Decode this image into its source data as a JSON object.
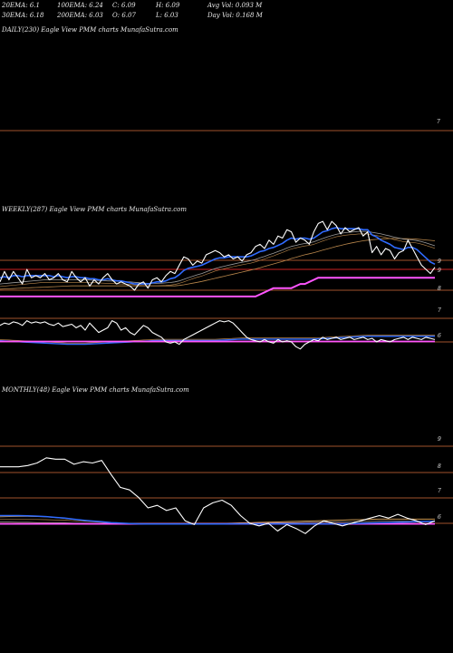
{
  "header": {
    "row1": [
      "20EMA: 6.1",
      "100EMA: 6.24",
      "C: 6.09",
      "H: 6.09",
      "Avg Vol: 0.093 M"
    ],
    "row2": [
      "30EMA: 6.18",
      "200EMA: 6.03",
      "O: 6.07",
      "L: 6.03",
      "Day Vol: 0.168 M"
    ]
  },
  "chart_data": [
    {
      "type": "line",
      "title": "DAILY(230) Eagle  View  PMM charts MunafaSutra.com",
      "y_ticks": [
        "7"
      ],
      "series": []
    },
    {
      "type": "line",
      "title": "WEEKLY(287) Eagle  View  PMM charts MunafaSutra.com",
      "y_ticks_upper": [
        "9",
        "9",
        "8"
      ],
      "y_ticks_lower": [
        "7",
        "6"
      ],
      "price": [
        8.4,
        8.9,
        8.5,
        8.9,
        8.6,
        8.3,
        9.0,
        8.6,
        8.7,
        8.6,
        8.8,
        8.5,
        8.6,
        8.8,
        8.5,
        8.4,
        8.9,
        8.6,
        8.4,
        8.6,
        8.2,
        8.5,
        8.3,
        8.6,
        8.8,
        8.5,
        8.3,
        8.4,
        8.3,
        8.2,
        8.0,
        8.3,
        8.4,
        8.1,
        8.5,
        8.6,
        8.4,
        8.7,
        8.9,
        8.8,
        9.2,
        9.6,
        9.5,
        9.2,
        9.4,
        9.3,
        9.7,
        9.8,
        9.9,
        9.8,
        9.6,
        9.7,
        9.5,
        9.6,
        9.4,
        9.7,
        9.8,
        10.1,
        10.2,
        10.0,
        10.4,
        10.2,
        10.6,
        10.5,
        10.9,
        10.8,
        10.3,
        10.5,
        10.4,
        10.2,
        10.8,
        11.2,
        11.3,
        10.9,
        11.3,
        11.1,
        10.7,
        11.0,
        10.8,
        10.9,
        11.0,
        10.6,
        10.8,
        9.8,
        10.1,
        9.7,
        10.0,
        9.9,
        9.5,
        9.8,
        9.9,
        10.4,
        10.0,
        9.6,
        9.2,
        9.0,
        8.8,
        9.1
      ],
      "ema_fast": [
        8.6,
        8.65,
        8.6,
        8.7,
        8.7,
        8.65,
        8.7,
        8.7,
        8.7,
        8.7,
        8.7,
        8.7,
        8.65,
        8.7,
        8.65,
        8.6,
        8.65,
        8.65,
        8.6,
        8.6,
        8.55,
        8.55,
        8.5,
        8.5,
        8.55,
        8.5,
        8.45,
        8.45,
        8.4,
        8.35,
        8.3,
        8.3,
        8.3,
        8.3,
        8.35,
        8.4,
        8.4,
        8.45,
        8.55,
        8.6,
        8.75,
        8.95,
        9.05,
        9.1,
        9.15,
        9.2,
        9.3,
        9.4,
        9.5,
        9.55,
        9.55,
        9.6,
        9.6,
        9.6,
        9.6,
        9.6,
        9.65,
        9.75,
        9.85,
        9.9,
        10.0,
        10.05,
        10.15,
        10.25,
        10.4,
        10.5,
        10.45,
        10.5,
        10.5,
        10.45,
        10.5,
        10.65,
        10.8,
        10.85,
        10.95,
        11.0,
        10.95,
        10.95,
        10.95,
        10.95,
        10.95,
        10.9,
        10.9,
        10.65,
        10.55,
        10.4,
        10.3,
        10.2,
        10.05,
        10.0,
        9.95,
        10.05,
        10.05,
        9.95,
        9.75,
        9.55,
        9.35,
        9.25
      ],
      "ema_slow": [
        8.3,
        8.32,
        8.34,
        8.36,
        8.38,
        8.4,
        8.42,
        8.44,
        8.46,
        8.48,
        8.5,
        8.5,
        8.5,
        8.5,
        8.5,
        8.5,
        8.5,
        8.5,
        8.5,
        8.5,
        8.49,
        8.48,
        8.47,
        8.46,
        8.45,
        8.44,
        8.43,
        8.42,
        8.41,
        8.4,
        8.38,
        8.36,
        8.34,
        8.33,
        8.33,
        8.33,
        8.34,
        8.35,
        8.37,
        8.4,
        8.45,
        8.52,
        8.6,
        8.67,
        8.74,
        8.8,
        8.88,
        8.96,
        9.04,
        9.1,
        9.15,
        9.2,
        9.25,
        9.3,
        9.34,
        9.38,
        9.42,
        9.48,
        9.55,
        9.62,
        9.7,
        9.77,
        9.85,
        9.93,
        10.02,
        10.1,
        10.15,
        10.2,
        10.24,
        10.27,
        10.32,
        10.4,
        10.48,
        10.55,
        10.62,
        10.68,
        10.72,
        10.76,
        10.78,
        10.8,
        10.82,
        10.82,
        10.82,
        10.78,
        10.74,
        10.7,
        10.65,
        10.6,
        10.54,
        10.5,
        10.45,
        10.43,
        10.41,
        10.38,
        10.33,
        10.27,
        10.2,
        10.13
      ],
      "ema_slowest": [
        8.05,
        8.06,
        8.07,
        8.08,
        8.09,
        8.1,
        8.11,
        8.12,
        8.13,
        8.14,
        8.15,
        8.16,
        8.17,
        8.18,
        8.19,
        8.2,
        8.21,
        8.21,
        8.21,
        8.21,
        8.21,
        8.21,
        8.21,
        8.21,
        8.21,
        8.21,
        8.21,
        8.21,
        8.21,
        8.21,
        8.21,
        8.21,
        8.21,
        8.21,
        8.21,
        8.21,
        8.21,
        8.21,
        8.21,
        8.21,
        8.23,
        8.26,
        8.3,
        8.34,
        8.38,
        8.42,
        8.47,
        8.52,
        8.57,
        8.62,
        8.67,
        8.72,
        8.77,
        8.82,
        8.87,
        8.92,
        8.97,
        9.02,
        9.08,
        9.14,
        9.2,
        9.26,
        9.32,
        9.38,
        9.45,
        9.52,
        9.58,
        9.64,
        9.7,
        9.75,
        9.8,
        9.86,
        9.92,
        9.98,
        10.04,
        10.1,
        10.15,
        10.2,
        10.25,
        10.29,
        10.33,
        10.37,
        10.4,
        10.42,
        10.44,
        10.46,
        10.47,
        10.48,
        10.48,
        10.48,
        10.47,
        10.47,
        10.46,
        10.45,
        10.43,
        10.41,
        10.39,
        10.37
      ],
      "min_line": [
        7.7,
        7.7,
        7.7,
        7.7,
        7.7,
        7.7,
        7.7,
        7.7,
        7.7,
        7.7,
        7.7,
        7.7,
        7.7,
        7.7,
        7.7,
        7.7,
        7.7,
        7.7,
        7.7,
        7.7,
        7.7,
        7.7,
        7.7,
        7.7,
        7.7,
        7.7,
        7.7,
        7.7,
        7.7,
        7.7,
        7.7,
        7.7,
        7.7,
        7.7,
        7.7,
        7.7,
        7.7,
        7.7,
        7.7,
        7.7,
        7.7,
        7.7,
        7.7,
        7.7,
        7.7,
        7.7,
        7.7,
        7.7,
        7.7,
        7.7,
        7.7,
        7.7,
        7.7,
        7.7,
        7.7,
        7.7,
        7.7,
        7.7,
        7.8,
        7.9,
        8.0,
        8.1,
        8.1,
        8.1,
        8.1,
        8.1,
        8.2,
        8.3,
        8.3,
        8.4,
        8.5,
        8.6,
        8.6,
        8.6,
        8.6,
        8.6,
        8.6,
        8.6,
        8.6,
        8.6,
        8.6,
        8.6,
        8.6,
        8.6,
        8.6,
        8.6,
        8.6,
        8.6,
        8.6,
        8.6,
        8.6,
        8.6,
        8.6,
        8.6,
        8.6,
        8.6,
        8.6,
        8.6
      ],
      "lower_price": [
        6.7,
        6.8,
        6.75,
        6.85,
        6.8,
        6.7,
        6.9,
        6.8,
        6.85,
        6.8,
        6.85,
        6.75,
        6.7,
        6.8,
        6.65,
        6.7,
        6.75,
        6.6,
        6.7,
        6.5,
        6.8,
        6.6,
        6.4,
        6.5,
        6.6,
        6.9,
        6.8,
        6.5,
        6.6,
        6.4,
        6.3,
        6.5,
        6.7,
        6.6,
        6.4,
        6.3,
        6.2,
        6.0,
        5.95,
        6.0,
        5.9,
        6.1,
        6.2,
        6.3,
        6.4,
        6.5,
        6.6,
        6.7,
        6.8,
        6.9,
        6.85,
        6.9,
        6.8,
        6.6,
        6.4,
        6.2,
        6.1,
        6.05,
        6.0,
        6.1,
        6.0,
        5.95,
        6.1,
        6.0,
        6.05,
        6.0,
        5.8,
        5.7,
        5.9,
        6.0,
        6.1,
        6.05,
        6.2,
        6.1,
        6.15,
        6.2,
        6.1,
        6.15,
        6.2,
        6.1,
        6.15,
        6.2,
        6.1,
        6.15,
        6.0,
        6.1,
        6.05,
        6.0,
        6.1,
        6.15,
        6.2,
        6.1,
        6.2,
        6.15,
        6.1,
        6.2,
        6.15,
        6.1
      ],
      "lower_ema": [
        6.05,
        6.04,
        6.03,
        6.02,
        6.01,
        6.0,
        5.99,
        5.98,
        5.97,
        5.96,
        5.95,
        5.94,
        5.93,
        5.92,
        5.91,
        5.9,
        5.9,
        5.9,
        5.9,
        5.9,
        5.91,
        5.92,
        5.93,
        5.94,
        5.95,
        5.96,
        5.97,
        5.98,
        5.99,
        6.0,
        6.01,
        6.02,
        6.03,
        6.04,
        6.05,
        6.06,
        6.06,
        6.06,
        6.06,
        6.06,
        6.06,
        6.06,
        6.06,
        6.06,
        6.06,
        6.06,
        6.06,
        6.06,
        6.06,
        6.07,
        6.08,
        6.09,
        6.1,
        6.11,
        6.12,
        6.12,
        6.12,
        6.12,
        6.12,
        6.12,
        6.12,
        6.12,
        6.12,
        6.12,
        6.12,
        6.12,
        6.12,
        6.12,
        6.12,
        6.12,
        6.12,
        6.13,
        6.14,
        6.15,
        6.16,
        6.17,
        6.18,
        6.19,
        6.2,
        6.21,
        6.22,
        6.23,
        6.24,
        6.24,
        6.24,
        6.24,
        6.24,
        6.24,
        6.24,
        6.24,
        6.24,
        6.24,
        6.24,
        6.24,
        6.24,
        6.24,
        6.24,
        6.24
      ],
      "lower_min": [
        6.02,
        6.02,
        6.02,
        6.02,
        6.02,
        6.02,
        6.02,
        6.02,
        6.02,
        6.02,
        6.02,
        6.02,
        6.02,
        6.02,
        6.02,
        6.02,
        6.02,
        6.02,
        6.02,
        6.02,
        6.02,
        6.02,
        6.02,
        6.02,
        6.02,
        6.02,
        6.02,
        6.02,
        6.02,
        6.02,
        6.02,
        6.02,
        6.02,
        6.02,
        6.02,
        6.02,
        6.02,
        6.02,
        6.02,
        6.02,
        6.02,
        6.02,
        6.02,
        6.02,
        6.02,
        6.02,
        6.02,
        6.02,
        6.02,
        6.02,
        6.02,
        6.02,
        6.02,
        6.02,
        6.02,
        6.02,
        6.02,
        6.02,
        6.02,
        6.02,
        6.02,
        6.02,
        6.02,
        6.02,
        6.02,
        6.02,
        6.02,
        6.02,
        6.02,
        6.02,
        6.02,
        6.02,
        6.02,
        6.02,
        6.02,
        6.02,
        6.02,
        6.02,
        6.02,
        6.02,
        6.02,
        6.02,
        6.02,
        6.02,
        6.02,
        6.02,
        6.02,
        6.02,
        6.02,
        6.02,
        6.02,
        6.02,
        6.02,
        6.02,
        6.02,
        6.02,
        6.02,
        6.02
      ]
    },
    {
      "type": "line",
      "title": "MONTHLY(48) Eagle  View  PMM charts MunafaSutra.com",
      "y_ticks": [
        "9",
        "8",
        "7",
        "6"
      ],
      "price": [
        8.2,
        8.2,
        8.2,
        8.25,
        8.35,
        8.55,
        8.5,
        8.5,
        8.3,
        8.4,
        8.35,
        8.45,
        7.9,
        7.4,
        7.3,
        7.0,
        6.6,
        6.7,
        6.5,
        6.6,
        6.1,
        5.95,
        6.6,
        6.8,
        6.9,
        6.7,
        6.3,
        6.0,
        5.9,
        6.0,
        5.7,
        5.95,
        5.8,
        5.6,
        5.9,
        6.1,
        6.0,
        5.9,
        6.0,
        6.1,
        6.2,
        6.3,
        6.2,
        6.35,
        6.2,
        6.1,
        5.95,
        6.1
      ],
      "ema_a": [
        6.25,
        6.26,
        6.27,
        6.27,
        6.26,
        6.25,
        6.22,
        6.19,
        6.15,
        6.12,
        6.08,
        6.05,
        6.02,
        6.0,
        5.99,
        5.98,
        5.98,
        5.98,
        5.99,
        6.0,
        6.0,
        6.0,
        6.0,
        6.0,
        6.0,
        6.01,
        6.02,
        6.03,
        6.04,
        6.05,
        6.06,
        6.07,
        6.08,
        6.09,
        6.1,
        6.11,
        6.12,
        6.13,
        6.14,
        6.15,
        6.16,
        6.17,
        6.17,
        6.17,
        6.17,
        6.17,
        6.17,
        6.17
      ],
      "ema_b": [
        6.15,
        6.15,
        6.15,
        6.15,
        6.15,
        6.14,
        6.13,
        6.12,
        6.1,
        6.08,
        6.06,
        6.04,
        6.02,
        6.01,
        6.0,
        6.0,
        6.0,
        6.0,
        6.0,
        6.0,
        6.0,
        6.0,
        6.0,
        6.0,
        6.0,
        6.0,
        6.01,
        6.02,
        6.03,
        6.04,
        6.05,
        6.06,
        6.07,
        6.08,
        6.09,
        6.1,
        6.11,
        6.12,
        6.13,
        6.14,
        6.15,
        6.16,
        6.16,
        6.16,
        6.16,
        6.16,
        6.16,
        6.16
      ],
      "ema_c": [
        6.05,
        6.05,
        6.04,
        6.04,
        6.03,
        6.03,
        6.02,
        6.02,
        6.01,
        6.01,
        6.0,
        6.0,
        6.0,
        6.0,
        6.0,
        6.0,
        6.0,
        6.0,
        6.0,
        6.0,
        6.0,
        6.0,
        6.0,
        6.0,
        6.0,
        6.0,
        6.0,
        6.01,
        6.01,
        6.02,
        6.02,
        6.03,
        6.03,
        6.04,
        6.04,
        6.05,
        6.05,
        6.06,
        6.06,
        6.07,
        6.07,
        6.08,
        6.08,
        6.08,
        6.08,
        6.08,
        6.08,
        6.08
      ],
      "blue": [
        6.3,
        6.3,
        6.3,
        6.29,
        6.28,
        6.26,
        6.23,
        6.2,
        6.16,
        6.12,
        6.09,
        6.06,
        6.03,
        6.01,
        5.99,
        5.98,
        5.97,
        5.97,
        5.97,
        5.97,
        5.97,
        5.97,
        5.97,
        5.97,
        5.97,
        5.98,
        5.98,
        5.98,
        5.98,
        5.98,
        5.98,
        5.98,
        5.98,
        5.98,
        5.98,
        5.98,
        5.98,
        5.98,
        5.99,
        6.0,
        6.01,
        6.02,
        6.03,
        6.04,
        6.05,
        6.06,
        6.07,
        6.08
      ],
      "min_line": [
        5.98,
        5.98,
        5.98,
        5.98,
        5.98,
        5.98,
        5.98,
        5.98,
        5.98,
        5.98,
        5.98,
        5.98,
        5.98,
        5.98,
        5.98,
        5.98,
        5.98,
        5.98,
        5.98,
        5.98,
        5.98,
        5.98,
        5.98,
        5.98,
        5.98,
        5.98,
        5.98,
        5.98,
        5.98,
        5.98,
        5.98,
        5.98,
        5.98,
        5.98,
        5.98,
        5.98,
        5.98,
        5.98,
        5.98,
        5.98,
        5.98,
        5.98,
        5.98,
        5.98,
        5.98,
        5.98,
        5.98,
        5.98
      ]
    }
  ],
  "colors": {
    "background": "#000000",
    "price": "#ffffff",
    "ema_blue": "#2f6bff",
    "min_line": "#ff55ff",
    "grid": "#a0522d",
    "grid_red": "#cc2222",
    "ema_brown": "#b8864b",
    "ema_gray": "#9a9a9a"
  }
}
